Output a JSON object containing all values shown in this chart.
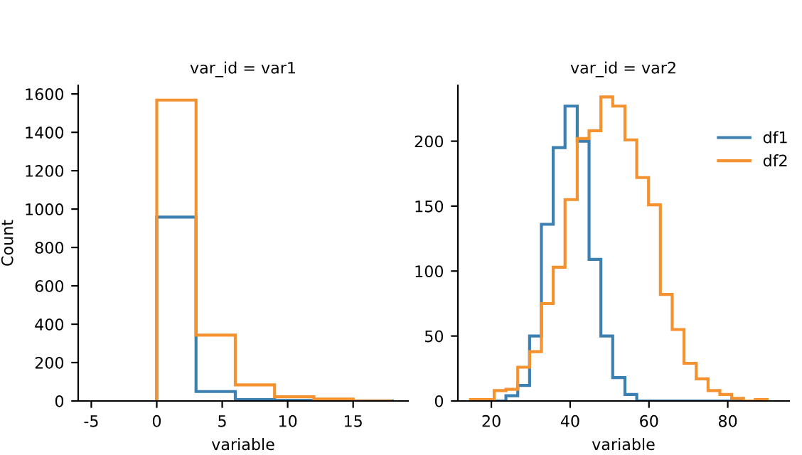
{
  "chart_data": [
    {
      "type": "histogram",
      "title": "var_id = var1",
      "xlabel": "variable",
      "ylabel": "Count",
      "xlim": [
        -6,
        19.2
      ],
      "xticks": [
        -5,
        0,
        5,
        10,
        15
      ],
      "ylim": [
        0,
        1645
      ],
      "yticks": [
        0,
        200,
        400,
        600,
        800,
        1000,
        1200,
        1400,
        1600
      ],
      "legend": false,
      "bins": [
        0,
        3,
        6,
        9,
        12,
        15,
        18
      ],
      "series": [
        {
          "color": "#3c80b1",
          "values": [
            958,
            49,
            7,
            3,
            2,
            1
          ]
        },
        {
          "color": "#f3922f",
          "values": [
            1568,
            343,
            84,
            22,
            10,
            0
          ]
        }
      ]
    },
    {
      "type": "histogram",
      "title": "var_id = var2",
      "xlabel": "variable",
      "xlim": [
        11.5,
        95.6
      ],
      "xticks": [
        20,
        40,
        60,
        80
      ],
      "ylim": [
        0,
        243
      ],
      "yticks": [
        0,
        50,
        100,
        150,
        200
      ],
      "legend": "top right",
      "bins": [
        14.7,
        17.7,
        20.7,
        23.7,
        26.7,
        29.7,
        32.7,
        35.7,
        38.7,
        41.8,
        44.8,
        47.8,
        50.8,
        53.9,
        56.9,
        59.9,
        62.9,
        65.9,
        68.9,
        72.0,
        75.0,
        78.0,
        81.0,
        84.0,
        87.0,
        90.0
      ],
      "series": [
        {
          "name": "df1",
          "color": "#3c80b1",
          "values": [
            0,
            0,
            0,
            4,
            12,
            50,
            136,
            195,
            227,
            200,
            109,
            50,
            18,
            5,
            0,
            0,
            0,
            0,
            0,
            0,
            0,
            0,
            0,
            0,
            0
          ]
        },
        {
          "name": "df2",
          "color": "#f3922f",
          "values": [
            1,
            1,
            8,
            9,
            26,
            38,
            75,
            103,
            155,
            202,
            208,
            234,
            227,
            201,
            172,
            151,
            82,
            55,
            29,
            17,
            8,
            5,
            2,
            0,
            1
          ]
        }
      ]
    }
  ]
}
